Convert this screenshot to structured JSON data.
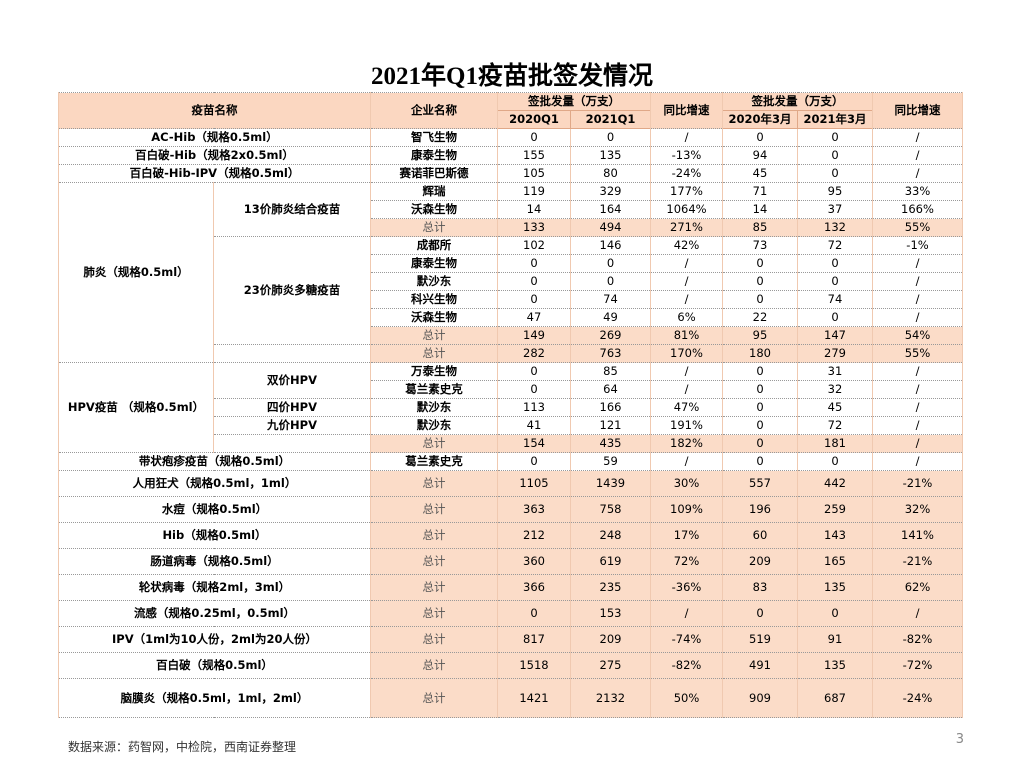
{
  "title": "2021年Q1疫苗批签发情况",
  "table": {
    "header": {
      "name": "疫苗名称",
      "company": "企业名称",
      "groups": [
        {
          "label": "签批发量（万支）",
          "cols": [
            "2020Q1",
            "2021Q1"
          ],
          "growth": "同比增速"
        },
        {
          "label": "签批发量（万支）",
          "cols": [
            "2020年3月",
            "2021年3月"
          ],
          "growth": "同比增速"
        }
      ]
    },
    "rows": [
      {
        "name": "AC-Hib（规格0.5ml）",
        "company": "智飞生物",
        "values": [
          0,
          0,
          "/",
          0,
          0,
          "/"
        ]
      },
      {
        "name": "百白破-Hib（规格2x0.5ml）",
        "company": "康泰生物",
        "values": [
          155,
          135,
          "-13%",
          94,
          0,
          "/"
        ]
      },
      {
        "name": "百白破-Hib-IPV（规格0.5ml）",
        "company": "赛诺菲巴斯德",
        "values": [
          105,
          80,
          "-24%",
          45,
          0,
          "/"
        ]
      },
      {
        "group": "肺炎（规格0.5ml）",
        "subgroups": [
          {
            "name": "13价肺炎结合疫苗",
            "rows": [
              {
                "company": "辉瑞",
                "values": [
                  119,
                  329,
                  "177%",
                  71,
                  95,
                  "33%"
                ]
              },
              {
                "company": "沃森生物",
                "values": [
                  14,
                  164,
                  "1064%",
                  14,
                  37,
                  "166%"
                ]
              },
              {
                "company": "总计",
                "values": [
                  133,
                  494,
                  "271%",
                  85,
                  132,
                  "55%"
                ]
              }
            ]
          },
          {
            "name": "23价肺炎多糖疫苗",
            "rows": [
              {
                "company": "成都所",
                "values": [
                  102,
                  146,
                  "42%",
                  73,
                  72,
                  "-1%"
                ]
              },
              {
                "company": "康泰生物",
                "values": [
                  0,
                  0,
                  "/",
                  0,
                  0,
                  "/"
                ]
              },
              {
                "company": "默沙东",
                "values": [
                  0,
                  0,
                  "/",
                  0,
                  0,
                  "/"
                ]
              },
              {
                "company": "科兴生物",
                "values": [
                  0,
                  74,
                  "/",
                  0,
                  74,
                  "/"
                ]
              },
              {
                "company": "沃森生物",
                "values": [
                  47,
                  49,
                  "6%",
                  22,
                  0,
                  "/"
                ]
              },
              {
                "company": "总计",
                "values": [
                  149,
                  269,
                  "81%",
                  95,
                  147,
                  "54%"
                ]
              }
            ]
          },
          {
            "rows": [
              {
                "company": "总计",
                "values": [
                  282,
                  763,
                  "170%",
                  180,
                  279,
                  "55%"
                ]
              }
            ]
          }
        ]
      },
      {
        "group": "HPV疫苗 （规格0.5ml）",
        "subgroups": [
          {
            "name": "双价HPV",
            "rows": [
              {
                "company": "万泰生物",
                "values": [
                  0,
                  85,
                  "/",
                  0,
                  31,
                  "/"
                ]
              },
              {
                "company": "葛兰素史克",
                "values": [
                  0,
                  64,
                  "/",
                  0,
                  32,
                  "/"
                ]
              }
            ]
          },
          {
            "name": "四价HPV",
            "rows": [
              {
                "company": "默沙东",
                "values": [
                  113,
                  166,
                  "47%",
                  0,
                  45,
                  "/"
                ]
              }
            ]
          },
          {
            "name": "九价HPV",
            "rows": [
              {
                "company": "默沙东",
                "values": [
                  41,
                  121,
                  "191%",
                  0,
                  72,
                  "/"
                ]
              }
            ]
          },
          {
            "rows": [
              {
                "company": "总计",
                "values": [
                  154,
                  435,
                  "182%",
                  0,
                  181,
                  "/"
                ]
              }
            ]
          }
        ]
      },
      {
        "name": "带状疱疹疫苗（规格0.5ml）",
        "company": "葛兰素史克",
        "values": [
          0,
          59,
          "/",
          0,
          0,
          "/"
        ]
      },
      {
        "name": "人用狂犬（规格0.5ml，1ml）",
        "company": "总计",
        "values": [
          1105,
          1439,
          "30%",
          557,
          442,
          "-21%"
        ]
      },
      {
        "name": "水痘（规格0.5ml）",
        "company": "总计",
        "values": [
          363,
          758,
          "109%",
          196,
          259,
          "32%"
        ]
      },
      {
        "name": "Hib（规格0.5ml）",
        "company": "总计",
        "values": [
          212,
          248,
          "17%",
          60,
          143,
          "141%"
        ]
      },
      {
        "name": "肠道病毒（规格0.5ml）",
        "company": "总计",
        "values": [
          360,
          619,
          "72%",
          209,
          165,
          "-21%"
        ]
      },
      {
        "name": "轮状病毒（规格2ml，3ml）",
        "company": "总计",
        "values": [
          366,
          235,
          "-36%",
          83,
          135,
          "62%"
        ]
      },
      {
        "name": "流感（规格0.25ml，0.5ml）",
        "company": "总计",
        "values": [
          0,
          153,
          "/",
          0,
          0,
          "/"
        ]
      },
      {
        "name": "IPV（1ml为10人份，2ml为20人份）",
        "company": "总计",
        "values": [
          817,
          209,
          "-74%",
          519,
          91,
          "-82%"
        ]
      },
      {
        "name": "百白破（规格0.5ml）",
        "company": "总计",
        "values": [
          1518,
          275,
          "-82%",
          491,
          135,
          "-72%"
        ]
      },
      {
        "name": "脑膜炎（规格0.5ml，1ml，2ml）",
        "company": "总计",
        "values": [
          1421,
          2132,
          "50%",
          909,
          687,
          "-24%"
        ]
      }
    ]
  },
  "footer": {
    "source": "数据来源：药智网，中检院，西南证券整理",
    "page": 3
  }
}
